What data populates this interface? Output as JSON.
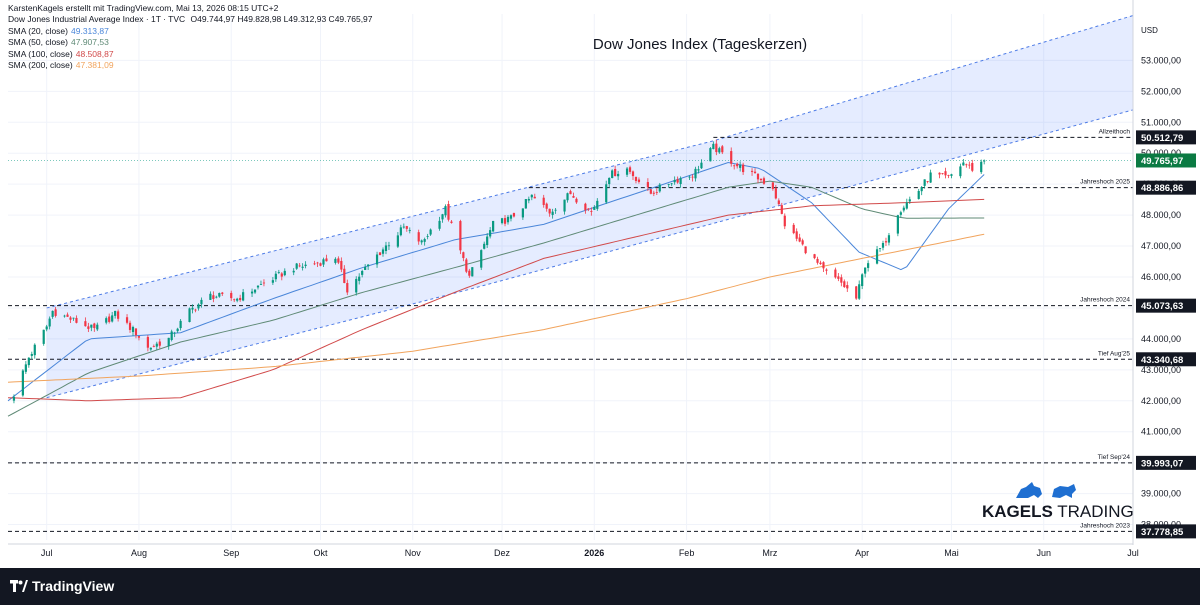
{
  "header": {
    "published_by": "KarstenKagels erstellt mit TradingView.com, Mai 13, 2026 08:15 UTC+2",
    "symbol": "Dow Jones Industrial Average Index · 1T · TVC",
    "ohlc": "O49.744,97  H49.828,98  L49.312,93  C49.765,97"
  },
  "indicators": [
    {
      "label": "SMA (20, close)",
      "value": "49.313,87",
      "color": "#4a86d9"
    },
    {
      "label": "SMA (50, close)",
      "value": "47.907,53",
      "color": "#5f8a76"
    },
    {
      "label": "SMA (100, close)",
      "value": "48.508,87",
      "color": "#d14a4a"
    },
    {
      "label": "SMA (200, close)",
      "value": "47.381,09",
      "color": "#f1a45d"
    }
  ],
  "footer": {
    "brand": "TradingView"
  },
  "watermark": {
    "part1": "KAGELS",
    "part2": "TRADING"
  },
  "chart_data": {
    "type": "candlestick",
    "title": "Dow Jones Index (Tageskerzen)",
    "currency": "USD",
    "ylim": [
      37500,
      54500
    ],
    "y_ticks": [
      38000,
      39000,
      40000,
      41000,
      42000,
      43000,
      44000,
      45000,
      46000,
      47000,
      48000,
      49000,
      50000,
      51000,
      52000,
      53000
    ],
    "y_tick_labels": [
      "38.000,00",
      "39.000,00",
      "40.000,00",
      "41.000,00",
      "42.000,00",
      "43.000,00",
      "44.000,00",
      "45.000,00",
      "46.000,00",
      "47.000,00",
      "48.000,00",
      "49.000,00",
      "50.000,00",
      "51.000,00",
      "52.000,00",
      "53.000,00"
    ],
    "x_range": [
      "2025-06-18",
      "2026-07-01"
    ],
    "x_ticks": [
      {
        "date": "2025-07-01",
        "label": "Jul"
      },
      {
        "date": "2025-08-01",
        "label": "Aug"
      },
      {
        "date": "2025-09-01",
        "label": "Sep"
      },
      {
        "date": "2025-10-01",
        "label": "Okt"
      },
      {
        "date": "2025-11-01",
        "label": "Nov"
      },
      {
        "date": "2025-12-01",
        "label": "Dez"
      },
      {
        "date": "2026-01-01",
        "label": "2026"
      },
      {
        "date": "2026-02-01",
        "label": "Feb"
      },
      {
        "date": "2026-03-01",
        "label": "Mrz"
      },
      {
        "date": "2026-04-01",
        "label": "Apr"
      },
      {
        "date": "2026-05-01",
        "label": "Mai"
      },
      {
        "date": "2026-06-01",
        "label": "Jun"
      },
      {
        "date": "2026-07-01",
        "label": "Jul"
      }
    ],
    "price_waypoints": [
      [
        "2025-06-20",
        42200
      ],
      [
        "2025-06-25",
        43400
      ],
      [
        "2025-07-01",
        44400
      ],
      [
        "2025-07-03",
        44900
      ],
      [
        "2025-07-10",
        44600
      ],
      [
        "2025-07-17",
        44300
      ],
      [
        "2025-07-24",
        44800
      ],
      [
        "2025-07-31",
        44200
      ],
      [
        "2025-08-04",
        43700
      ],
      [
        "2025-08-11",
        44000
      ],
      [
        "2025-08-18",
        44900
      ],
      [
        "2025-08-25",
        45400
      ],
      [
        "2025-09-03",
        45300
      ],
      [
        "2025-09-12",
        45800
      ],
      [
        "2025-09-22",
        46300
      ],
      [
        "2025-09-30",
        46450
      ],
      [
        "2025-10-06",
        46650
      ],
      [
        "2025-10-10",
        45600
      ],
      [
        "2025-10-20",
        46700
      ],
      [
        "2025-10-29",
        47600
      ],
      [
        "2025-11-04",
        47100
      ],
      [
        "2025-11-12",
        48200
      ],
      [
        "2025-11-20",
        46000
      ],
      [
        "2025-11-28",
        47700
      ],
      [
        "2025-12-04",
        47900
      ],
      [
        "2025-12-11",
        48600
      ],
      [
        "2025-12-17",
        48100
      ],
      [
        "2025-12-24",
        48700
      ],
      [
        "2025-12-31",
        48100
      ],
      [
        "2026-01-06",
        49300
      ],
      [
        "2026-01-12",
        49500
      ],
      [
        "2026-01-20",
        48700
      ],
      [
        "2026-01-27",
        49100
      ],
      [
        "2026-02-03",
        49300
      ],
      [
        "2026-02-10",
        50200
      ],
      [
        "2026-02-18",
        49600
      ],
      [
        "2026-02-25",
        49200
      ],
      [
        "2026-03-02",
        48900
      ],
      [
        "2026-03-06",
        47700
      ],
      [
        "2026-03-12",
        47000
      ],
      [
        "2026-03-19",
        46200
      ],
      [
        "2026-03-25",
        45800
      ],
      [
        "2026-03-30",
        45300
      ],
      [
        "2026-04-02",
        46400
      ],
      [
        "2026-04-08",
        47000
      ],
      [
        "2026-04-13",
        48100
      ],
      [
        "2026-04-20",
        48800
      ],
      [
        "2026-04-24",
        49300
      ],
      [
        "2026-04-30",
        49200
      ],
      [
        "2026-05-05",
        49700
      ],
      [
        "2026-05-08",
        49500
      ],
      [
        "2026-05-12",
        49770
      ]
    ],
    "sma_waypoints": {
      "sma20": [
        [
          "2025-06-18",
          42000
        ],
        [
          "2025-07-15",
          44000
        ],
        [
          "2025-08-15",
          44200
        ],
        [
          "2025-09-15",
          45300
        ],
        [
          "2025-10-15",
          46300
        ],
        [
          "2025-11-15",
          47200
        ],
        [
          "2025-12-15",
          47700
        ],
        [
          "2026-01-15",
          48700
        ],
        [
          "2026-02-15",
          49700
        ],
        [
          "2026-02-26",
          49500
        ],
        [
          "2026-03-15",
          48400
        ],
        [
          "2026-03-31",
          46800
        ],
        [
          "2026-04-15",
          46200
        ],
        [
          "2026-04-30",
          48200
        ],
        [
          "2026-05-12",
          49314
        ]
      ],
      "sma50": [
        [
          "2025-06-18",
          41500
        ],
        [
          "2025-07-15",
          42900
        ],
        [
          "2025-08-15",
          43900
        ],
        [
          "2025-09-15",
          44600
        ],
        [
          "2025-10-15",
          45500
        ],
        [
          "2025-11-15",
          46300
        ],
        [
          "2025-12-15",
          47100
        ],
        [
          "2026-01-15",
          48000
        ],
        [
          "2026-02-15",
          48900
        ],
        [
          "2026-03-01",
          49100
        ],
        [
          "2026-03-15",
          48900
        ],
        [
          "2026-04-01",
          48200
        ],
        [
          "2026-04-15",
          47900
        ],
        [
          "2026-05-12",
          47908
        ]
      ],
      "sma100": [
        [
          "2025-06-18",
          42100
        ],
        [
          "2025-07-15",
          42000
        ],
        [
          "2025-08-15",
          42100
        ],
        [
          "2025-09-15",
          43000
        ],
        [
          "2025-10-15",
          44300
        ],
        [
          "2025-11-15",
          45500
        ],
        [
          "2025-12-15",
          46600
        ],
        [
          "2026-01-15",
          47300
        ],
        [
          "2026-02-15",
          48000
        ],
        [
          "2026-03-15",
          48300
        ],
        [
          "2026-04-15",
          48400
        ],
        [
          "2026-05-12",
          48509
        ]
      ],
      "sma200": [
        [
          "2025-06-18",
          42600
        ],
        [
          "2025-08-01",
          42800
        ],
        [
          "2025-09-15",
          43100
        ],
        [
          "2025-11-01",
          43600
        ],
        [
          "2025-12-15",
          44300
        ],
        [
          "2026-02-01",
          45300
        ],
        [
          "2026-03-01",
          46000
        ],
        [
          "2026-04-01",
          46600
        ],
        [
          "2026-05-12",
          47381
        ]
      ]
    },
    "channel": {
      "upper": [
        [
          "2025-07-01",
          45000
        ],
        [
          "2026-02-10",
          50400
        ],
        [
          "2026-07-01",
          54450
        ]
      ],
      "lower": [
        [
          "2025-07-01",
          42100
        ],
        [
          "2025-11-20",
          45600
        ],
        [
          "2026-07-01",
          51400
        ]
      ]
    },
    "levels": [
      {
        "name": "Allzeithoch",
        "value": 50512.79,
        "label": "50.512,79",
        "from": "2026-02-10"
      },
      {
        "name": "Jahreshoch 2025",
        "value": 48886.86,
        "label": "48.886,86",
        "from": "2025-12-10"
      },
      {
        "name": "Jahreshoch 2024",
        "value": 45073.63,
        "label": "45.073,63",
        "from": "2025-06-18"
      },
      {
        "name": "Tief Aug'25",
        "value": 43340.68,
        "label": "43.340,68",
        "from": "2025-06-18"
      },
      {
        "name": "Tief Sep'24",
        "value": 39993.07,
        "label": "39.993,07",
        "from": "2025-06-18"
      },
      {
        "name": "Jahreshoch 2023",
        "value": 37778.85,
        "label": "37.778,85",
        "from": "2025-06-18"
      }
    ],
    "last_price": {
      "value": 49765.97,
      "label": "49.765,97"
    },
    "bull_color": "#089981",
    "bear_color": "#f23645"
  }
}
